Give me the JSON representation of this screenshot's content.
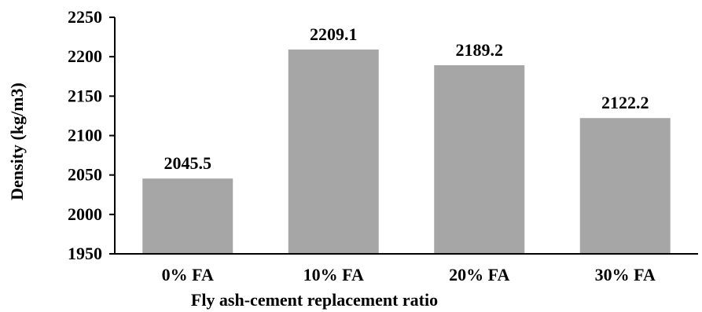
{
  "chart_data": {
    "type": "bar",
    "categories": [
      "0% FA",
      "10% FA",
      "20% FA",
      "30% FA"
    ],
    "values": [
      2045.5,
      2209.1,
      2189.2,
      2122.2
    ],
    "data_labels": [
      "2045.5",
      "2209.1",
      "2189.2",
      "2122.2"
    ],
    "title": "",
    "xlabel": "Fly ash-cement replacement ratio",
    "ylabel": "Density (kg/m3)",
    "ylim": [
      1950,
      2250
    ],
    "yticks": [
      "1950",
      "2000",
      "2050",
      "2100",
      "2150",
      "2200",
      "2250"
    ],
    "grid": false,
    "legend": "none",
    "bar_color": "#a6a6a6",
    "axis_color": "#000000"
  }
}
